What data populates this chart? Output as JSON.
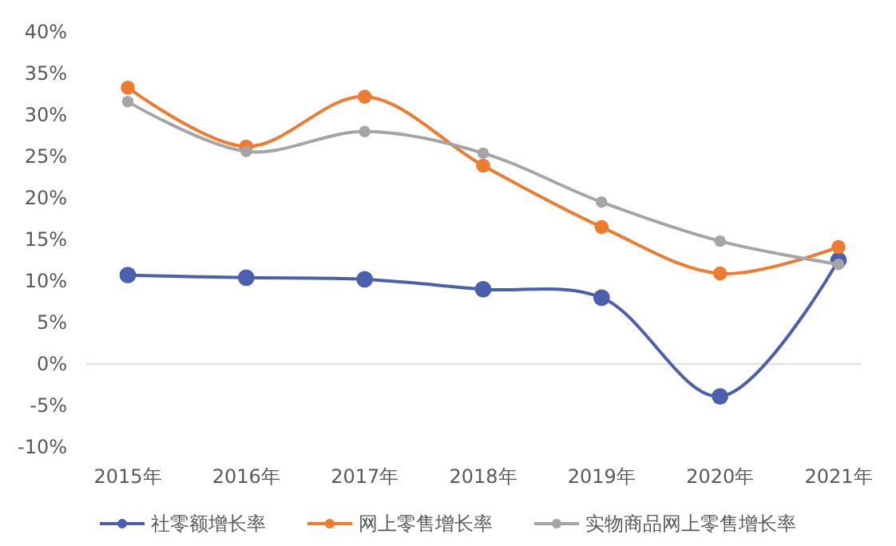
{
  "chart_data": {
    "type": "line",
    "categories": [
      "2015年",
      "2016年",
      "2017年",
      "2018年",
      "2019年",
      "2020年",
      "2021年"
    ],
    "series": [
      {
        "name": "社零额增长率",
        "color": "#4a5fad",
        "values": [
          10.7,
          10.4,
          10.2,
          9.0,
          8.0,
          -3.9,
          12.5
        ]
      },
      {
        "name": "网上零售增长率",
        "color": "#ef7b2e",
        "values": [
          33.3,
          26.2,
          32.2,
          23.9,
          16.5,
          10.9,
          14.1
        ]
      },
      {
        "name": "实物商品网上零售增长率",
        "color": "#a5a5a5",
        "values": [
          31.6,
          25.6,
          28.0,
          25.4,
          19.5,
          14.8,
          12.0
        ]
      }
    ],
    "ylim": [
      -10,
      40
    ],
    "yticks": [
      {
        "value": -10,
        "label": "-10%"
      },
      {
        "value": -5,
        "label": "-5%"
      },
      {
        "value": 0,
        "label": "0%"
      },
      {
        "value": 5,
        "label": "5%"
      },
      {
        "value": 10,
        "label": "10%"
      },
      {
        "value": 15,
        "label": "15%"
      },
      {
        "value": 20,
        "label": "20%"
      },
      {
        "value": 25,
        "label": "25%"
      },
      {
        "value": 30,
        "label": "30%"
      },
      {
        "value": 35,
        "label": "35%"
      },
      {
        "value": 40,
        "label": "40%"
      }
    ],
    "ref_lines": [
      {
        "axis": "y",
        "value": 0,
        "color": "#e3e3e3"
      }
    ],
    "marker": "circle",
    "legend": "bottom"
  }
}
